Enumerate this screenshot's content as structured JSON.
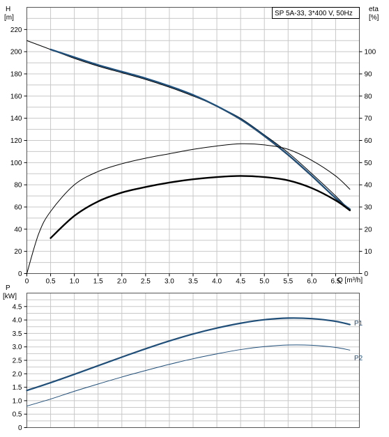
{
  "chart_data": [
    {
      "id": "head-efficiency",
      "type": "line",
      "title": "SP 5A-33, 3*400 V, 50Hz",
      "xlabel": "Q [m³/h]",
      "ylabel_left": "H\n[m]",
      "ylabel_right": "eta\n[%]",
      "xlim": [
        0,
        7
      ],
      "ylim_left": [
        0,
        240
      ],
      "ylim_right": [
        0,
        120
      ],
      "grid": true,
      "x_ticks": [
        "0",
        "0.5",
        "1.0",
        "1.5",
        "2.0",
        "2.5",
        "3.0",
        "3.5",
        "4.0",
        "4.5",
        "5.0",
        "5.5",
        "6.0",
        "6.5"
      ],
      "y_ticks_left": [
        "0",
        "20",
        "40",
        "60",
        "80",
        "100",
        "120",
        "140",
        "160",
        "180",
        "200",
        "220"
      ],
      "y_ticks_right": [
        "0",
        "10",
        "20",
        "30",
        "40",
        "50",
        "60",
        "70",
        "80",
        "90",
        "100"
      ],
      "series": [
        {
          "axis": "left",
          "color": "#000000",
          "style": "thin",
          "x": [
            0,
            0.5,
            1.0,
            1.5,
            2.0,
            2.5,
            3.0,
            3.5,
            4.0,
            4.5,
            5.0,
            5.5,
            6.0,
            6.5,
            6.8
          ],
          "y": [
            210,
            202,
            194,
            187,
            181,
            175,
            168,
            160,
            151,
            140,
            125,
            109,
            90,
            70,
            57
          ]
        },
        {
          "axis": "left",
          "color": "#1f4e79",
          "style": "thick",
          "x": [
            0.5,
            1.0,
            1.5,
            2.0,
            2.5,
            3.0,
            3.5,
            4.0,
            4.5,
            5.0,
            5.5,
            6.0,
            6.5,
            6.8
          ],
          "y": [
            202,
            195,
            188,
            182,
            176,
            169,
            161,
            151,
            139,
            124,
            107,
            88,
            68,
            58
          ]
        },
        {
          "axis": "right",
          "color": "#000000",
          "style": "thin",
          "x": [
            0,
            0.25,
            0.5,
            1.0,
            1.5,
            2.0,
            2.5,
            3.0,
            3.5,
            4.0,
            4.5,
            5.0,
            5.5,
            6.0,
            6.5,
            6.8
          ],
          "y": [
            0,
            18,
            28,
            40,
            46,
            49.5,
            52,
            54,
            56,
            57.5,
            58.5,
            58,
            56,
            51,
            44,
            38
          ]
        },
        {
          "axis": "right",
          "color": "#000000",
          "style": "thick",
          "x": [
            0.5,
            1.0,
            1.5,
            2.0,
            2.5,
            3.0,
            3.5,
            4.0,
            4.5,
            5.0,
            5.5,
            6.0,
            6.5,
            6.8
          ],
          "y": [
            16,
            26,
            32.5,
            36.5,
            39,
            41,
            42.5,
            43.5,
            44,
            43.5,
            42,
            38.5,
            33,
            28.5
          ]
        }
      ]
    },
    {
      "id": "power",
      "type": "line",
      "xlabel": "",
      "ylabel_left": "P\n[kW]",
      "xlim": [
        0,
        7
      ],
      "ylim_left": [
        0,
        5
      ],
      "grid": true,
      "y_ticks_left": [
        "0",
        "0.5",
        "1.0",
        "1.5",
        "2.0",
        "2.5",
        "3.0",
        "3.5",
        "4.0",
        "4.5"
      ],
      "series": [
        {
          "name": "P1",
          "color": "#1f4e79",
          "style": "thick",
          "x": [
            0,
            0.5,
            1.0,
            1.5,
            2.0,
            2.5,
            3.0,
            3.5,
            4.0,
            4.5,
            5.0,
            5.5,
            6.0,
            6.5,
            6.8
          ],
          "y": [
            1.38,
            1.67,
            1.98,
            2.3,
            2.62,
            2.93,
            3.22,
            3.48,
            3.7,
            3.88,
            4.01,
            4.07,
            4.05,
            3.95,
            3.83
          ]
        },
        {
          "name": "P2",
          "color": "#1f4e79",
          "style": "thin",
          "x": [
            0,
            0.5,
            1.0,
            1.5,
            2.0,
            2.5,
            3.0,
            3.5,
            4.0,
            4.5,
            5.0,
            5.5,
            6.0,
            6.5,
            6.8
          ],
          "y": [
            0.8,
            1.06,
            1.35,
            1.62,
            1.88,
            2.12,
            2.35,
            2.56,
            2.74,
            2.9,
            3.01,
            3.07,
            3.06,
            2.98,
            2.88
          ]
        }
      ]
    }
  ]
}
